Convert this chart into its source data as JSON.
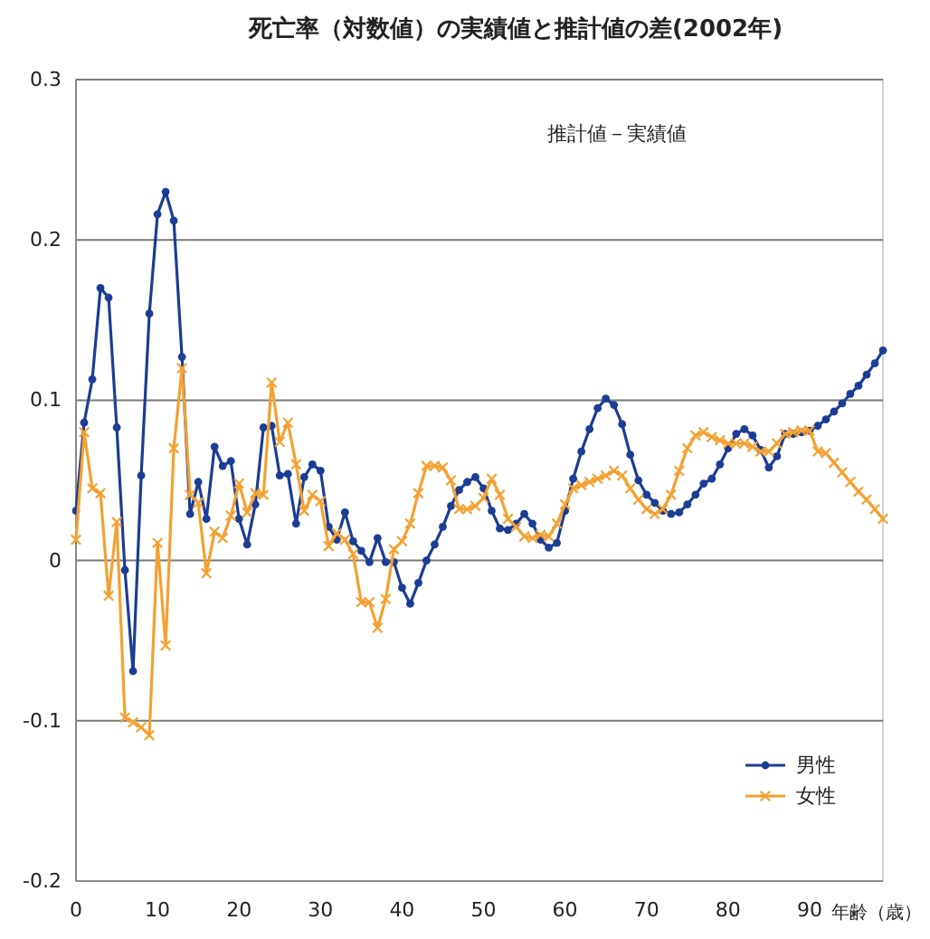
{
  "chart_data": {
    "type": "line",
    "title": "死亡率（対数値）の実績値と推計値の差(2002年)",
    "xlabel": "年齢（歳）",
    "annotations": [
      "推計値－実績値"
    ],
    "x": [
      0,
      1,
      2,
      3,
      4,
      5,
      6,
      7,
      8,
      9,
      10,
      11,
      12,
      13,
      14,
      15,
      16,
      17,
      18,
      19,
      20,
      21,
      22,
      23,
      24,
      25,
      26,
      27,
      28,
      29,
      30,
      31,
      32,
      33,
      34,
      35,
      36,
      37,
      38,
      39,
      40,
      41,
      42,
      43,
      44,
      45,
      46,
      47,
      48,
      49,
      50,
      51,
      52,
      53,
      54,
      55,
      56,
      57,
      58,
      59,
      60,
      61,
      62,
      63,
      64,
      65,
      66,
      67,
      68,
      69,
      70,
      71,
      72,
      73,
      74,
      75,
      76,
      77,
      78,
      79,
      80,
      81,
      82,
      83,
      84,
      85,
      86,
      87,
      88,
      89,
      90,
      91,
      92,
      93,
      94,
      95,
      96,
      97,
      98,
      99
    ],
    "series": [
      {
        "name": "男性",
        "color": "#1c3d94",
        "marker": "circle",
        "values": [
          0.031,
          0.086,
          0.113,
          0.17,
          0.164,
          0.083,
          -0.006,
          -0.069,
          0.053,
          0.154,
          0.216,
          0.23,
          0.212,
          0.127,
          0.029,
          0.049,
          0.026,
          0.071,
          0.059,
          0.062,
          0.026,
          0.01,
          0.035,
          0.083,
          0.084,
          0.053,
          0.054,
          0.023,
          0.052,
          0.06,
          0.056,
          0.021,
          0.013,
          0.03,
          0.012,
          0.006,
          -0.001,
          0.014,
          -0.001,
          -0.001,
          -0.017,
          -0.027,
          -0.014,
          0.0,
          0.01,
          0.021,
          0.034,
          0.044,
          0.049,
          0.052,
          0.045,
          0.031,
          0.02,
          0.019,
          0.023,
          0.029,
          0.023,
          0.013,
          0.008,
          0.011,
          0.031,
          0.051,
          0.068,
          0.082,
          0.095,
          0.101,
          0.097,
          0.085,
          0.066,
          0.05,
          0.041,
          0.036,
          0.031,
          0.029,
          0.03,
          0.035,
          0.041,
          0.048,
          0.051,
          0.06,
          0.07,
          0.079,
          0.082,
          0.078,
          0.069,
          0.058,
          0.065,
          0.079,
          0.079,
          0.08,
          0.081,
          0.084,
          0.088,
          0.093,
          0.098,
          0.104,
          0.109,
          0.116,
          0.123,
          0.131
        ]
      },
      {
        "name": "女性",
        "color": "#f4a132",
        "marker": "cross",
        "values": [
          0.013,
          0.08,
          0.045,
          0.042,
          -0.022,
          0.024,
          -0.098,
          -0.101,
          -0.104,
          -0.109,
          0.011,
          -0.053,
          0.07,
          0.12,
          0.041,
          0.036,
          -0.008,
          0.018,
          0.014,
          0.028,
          0.048,
          0.03,
          0.042,
          0.041,
          0.111,
          0.074,
          0.086,
          0.06,
          0.031,
          0.041,
          0.037,
          0.009,
          0.017,
          0.013,
          0.004,
          -0.026,
          -0.026,
          -0.042,
          -0.024,
          0.007,
          0.012,
          0.023,
          0.042,
          0.059,
          0.059,
          0.058,
          0.05,
          0.032,
          0.032,
          0.034,
          0.039,
          0.051,
          0.041,
          0.026,
          0.021,
          0.015,
          0.014,
          0.016,
          0.015,
          0.023,
          0.035,
          0.045,
          0.047,
          0.049,
          0.051,
          0.053,
          0.056,
          0.053,
          0.045,
          0.038,
          0.032,
          0.029,
          0.032,
          0.041,
          0.056,
          0.07,
          0.078,
          0.08,
          0.077,
          0.075,
          0.073,
          0.073,
          0.073,
          0.071,
          0.068,
          0.068,
          0.073,
          0.079,
          0.08,
          0.081,
          0.081,
          0.068,
          0.067,
          0.061,
          0.055,
          0.049,
          0.043,
          0.038,
          0.032,
          0.026
        ]
      }
    ],
    "xlim": [
      0,
      99
    ],
    "xticks": [
      0,
      10,
      20,
      30,
      40,
      50,
      60,
      70,
      80,
      90
    ],
    "ylim": [
      -0.2,
      0.3
    ],
    "yticks": [
      -0.2,
      -0.1,
      0,
      0.1,
      0.2,
      0.3
    ],
    "grid": "y",
    "legend": "bottom right"
  }
}
